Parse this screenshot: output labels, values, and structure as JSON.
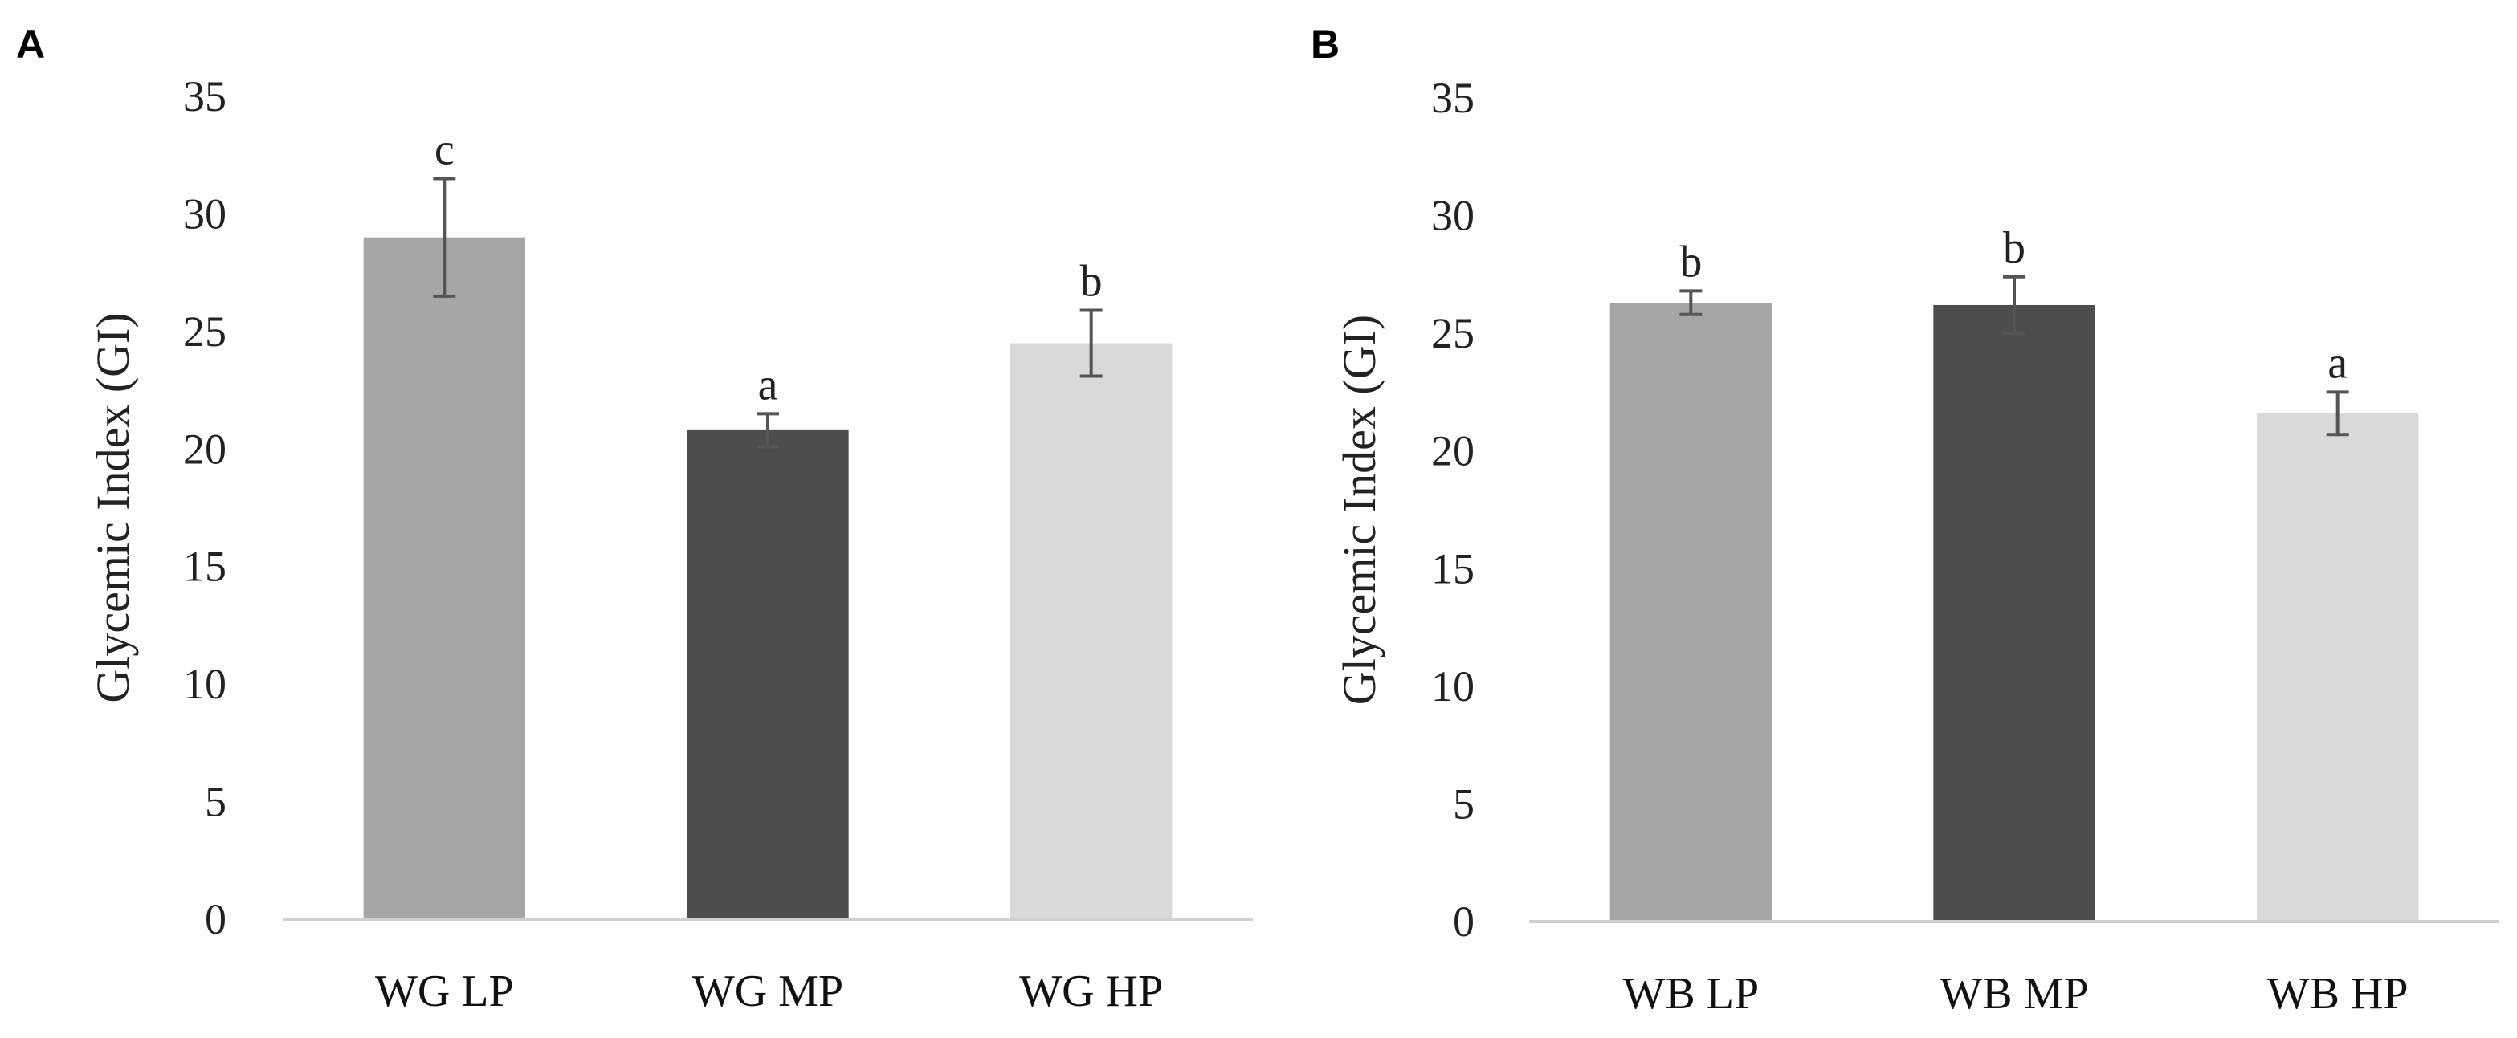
{
  "chart_data": [
    {
      "panel": "A",
      "type": "bar",
      "title": "",
      "xlabel": "",
      "ylabel": "Glycemic Index (GI)",
      "ylim": [
        0,
        35
      ],
      "yticks": [
        0,
        5,
        10,
        15,
        20,
        25,
        30,
        35
      ],
      "grid": false,
      "categories": [
        "WG LP",
        "WG MP",
        "WG HP"
      ],
      "values": [
        29.0,
        20.8,
        24.5
      ],
      "errors": [
        2.5,
        0.7,
        1.4
      ],
      "annotations": [
        "c",
        "a",
        "b"
      ],
      "colors": [
        "#a6a6a6",
        "#4d4d4d",
        "#d9d9d9"
      ]
    },
    {
      "panel": "B",
      "type": "bar",
      "title": "",
      "xlabel": "",
      "ylabel": "Glycemic Index (GI)",
      "ylim": [
        0,
        35
      ],
      "yticks": [
        0,
        5,
        10,
        15,
        20,
        25,
        30,
        35
      ],
      "grid": false,
      "categories": [
        "WB LP",
        "WB MP",
        "WB HP"
      ],
      "values": [
        26.3,
        26.2,
        21.6
      ],
      "errors": [
        0.5,
        1.2,
        0.9
      ],
      "annotations": [
        "b",
        "b",
        "a"
      ],
      "colors": [
        "#a6a6a6",
        "#4d4d4d",
        "#d9d9d9"
      ]
    }
  ]
}
